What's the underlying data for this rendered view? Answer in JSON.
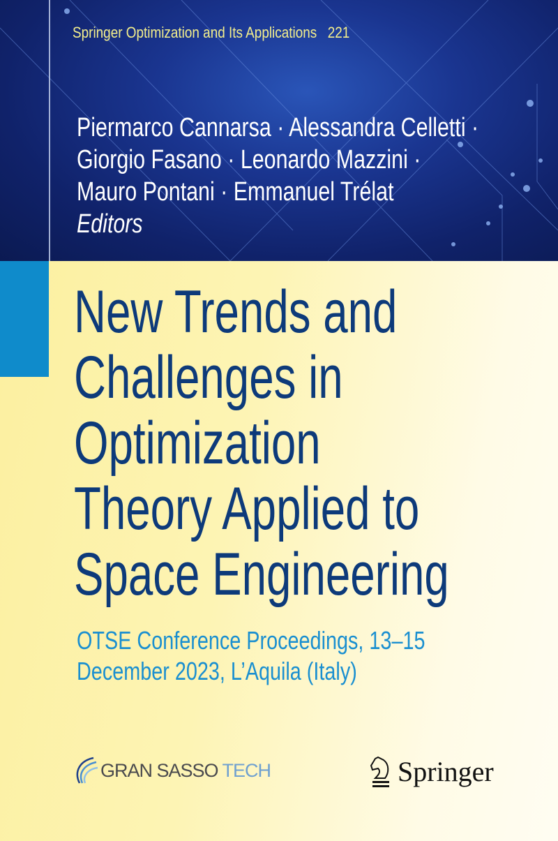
{
  "series": {
    "name": "Springer Optimization and Its Applications",
    "number": "221"
  },
  "authors": {
    "lines": [
      "Piermarco Cannarsa · Alessandra Celletti ·",
      "Giorgio Fasano · Leonardo Mazzini ·",
      "Mauro Pontani · Emmanuel Trélat"
    ],
    "role": "Editors"
  },
  "title": {
    "lines": [
      "New Trends and",
      "Challenges in",
      "Optimization",
      "Theory Applied to",
      "Space Engineering"
    ]
  },
  "subtitle": {
    "lines": [
      "OTSE Conference Proceedings, 13–15",
      "December 2023, L’Aquila (Italy)"
    ]
  },
  "logos": {
    "gran_sasso": {
      "part1": "GRAN SASSO",
      "part2": "TECH"
    },
    "publisher": "Springer"
  },
  "colors": {
    "top_bg": "#142a78",
    "series_text": "#f4ef8c",
    "title": "#0d3a7a",
    "subtitle": "#1a8fd0",
    "accent_bar": "#0f8bcb",
    "bottom_bg": "#fdf4b4"
  }
}
